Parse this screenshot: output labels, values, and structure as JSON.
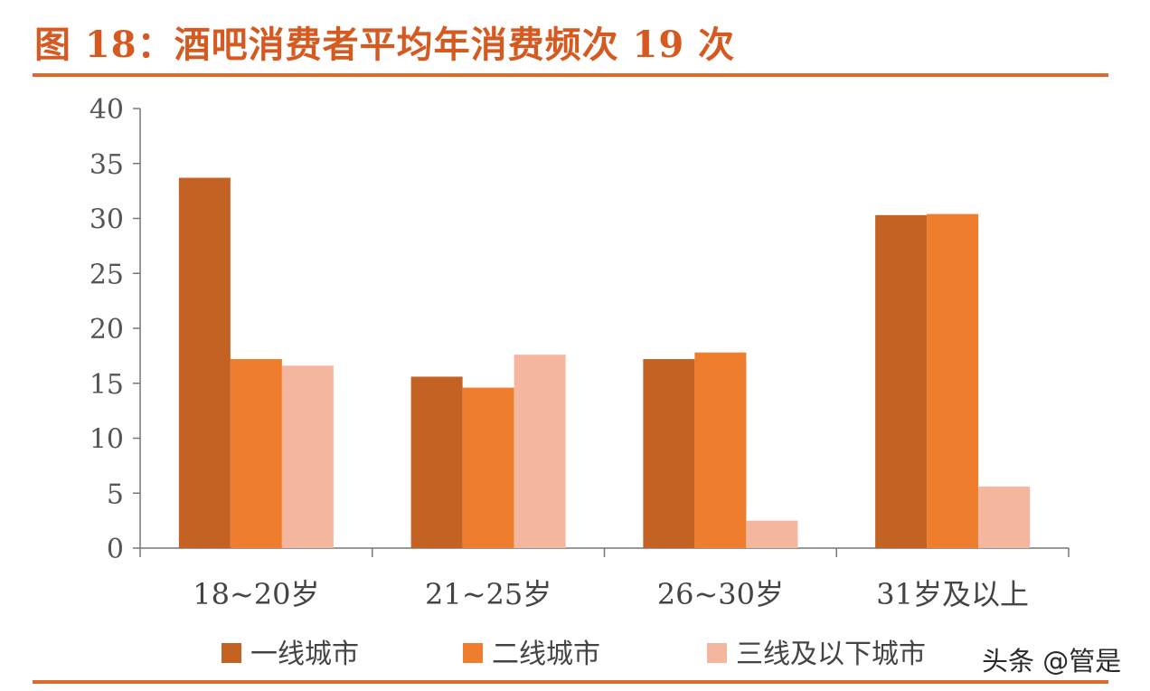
{
  "title": "图 18：酒吧消费者平均年消费频次 19 次",
  "watermark": "头条 @管是",
  "colors": {
    "title": "#d65a20",
    "rule": "#de6b2b",
    "series": [
      "#c46224",
      "#ef7d2e",
      "#f5b6a0"
    ]
  },
  "chart_data": {
    "type": "bar",
    "categories": [
      "18~20岁",
      "21~25岁",
      "26~30岁",
      "31岁及以上"
    ],
    "series": [
      {
        "name": "一线城市",
        "values": [
          33.7,
          15.6,
          17.2,
          30.3
        ]
      },
      {
        "name": "二线城市",
        "values": [
          17.2,
          14.6,
          17.8,
          30.4
        ]
      },
      {
        "name": "三线及以下城市",
        "values": [
          16.6,
          17.6,
          2.5,
          5.6
        ]
      }
    ],
    "ylim": [
      0,
      40
    ],
    "yticks": [
      0,
      5,
      10,
      15,
      20,
      25,
      30,
      35,
      40
    ],
    "legend_position": "bottom",
    "grid": false
  }
}
